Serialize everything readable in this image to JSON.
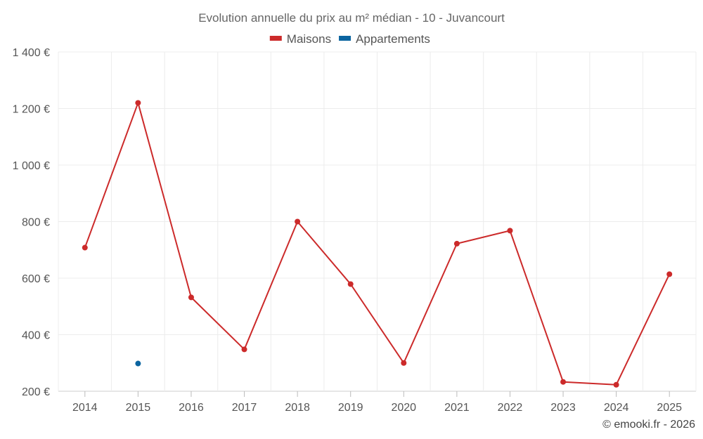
{
  "chart_data": {
    "type": "line",
    "title": "Evolution annuelle du prix au m² médian - 10 - Juvancourt",
    "categories": [
      "2014",
      "2015",
      "2016",
      "2017",
      "2018",
      "2019",
      "2020",
      "2021",
      "2022",
      "2023",
      "2024",
      "2025"
    ],
    "series": [
      {
        "name": "Maisons",
        "color": "#cc2a2a",
        "values": [
          708,
          1220,
          532,
          348,
          800,
          579,
          300,
          722,
          768,
          233,
          223,
          614
        ],
        "line": true
      },
      {
        "name": "Appartements",
        "color": "#0b64a0",
        "values": [
          null,
          298,
          null,
          null,
          null,
          null,
          null,
          null,
          null,
          null,
          null,
          null
        ],
        "line": false
      }
    ],
    "yticks": [
      "200 €",
      "400 €",
      "600 €",
      "800 €",
      "1 000 €",
      "1 200 €",
      "1 400 €"
    ],
    "ylim": [
      200,
      1400
    ],
    "grid": true,
    "legend_position": "top-center"
  },
  "credit": "© emooki.fr - 2026"
}
